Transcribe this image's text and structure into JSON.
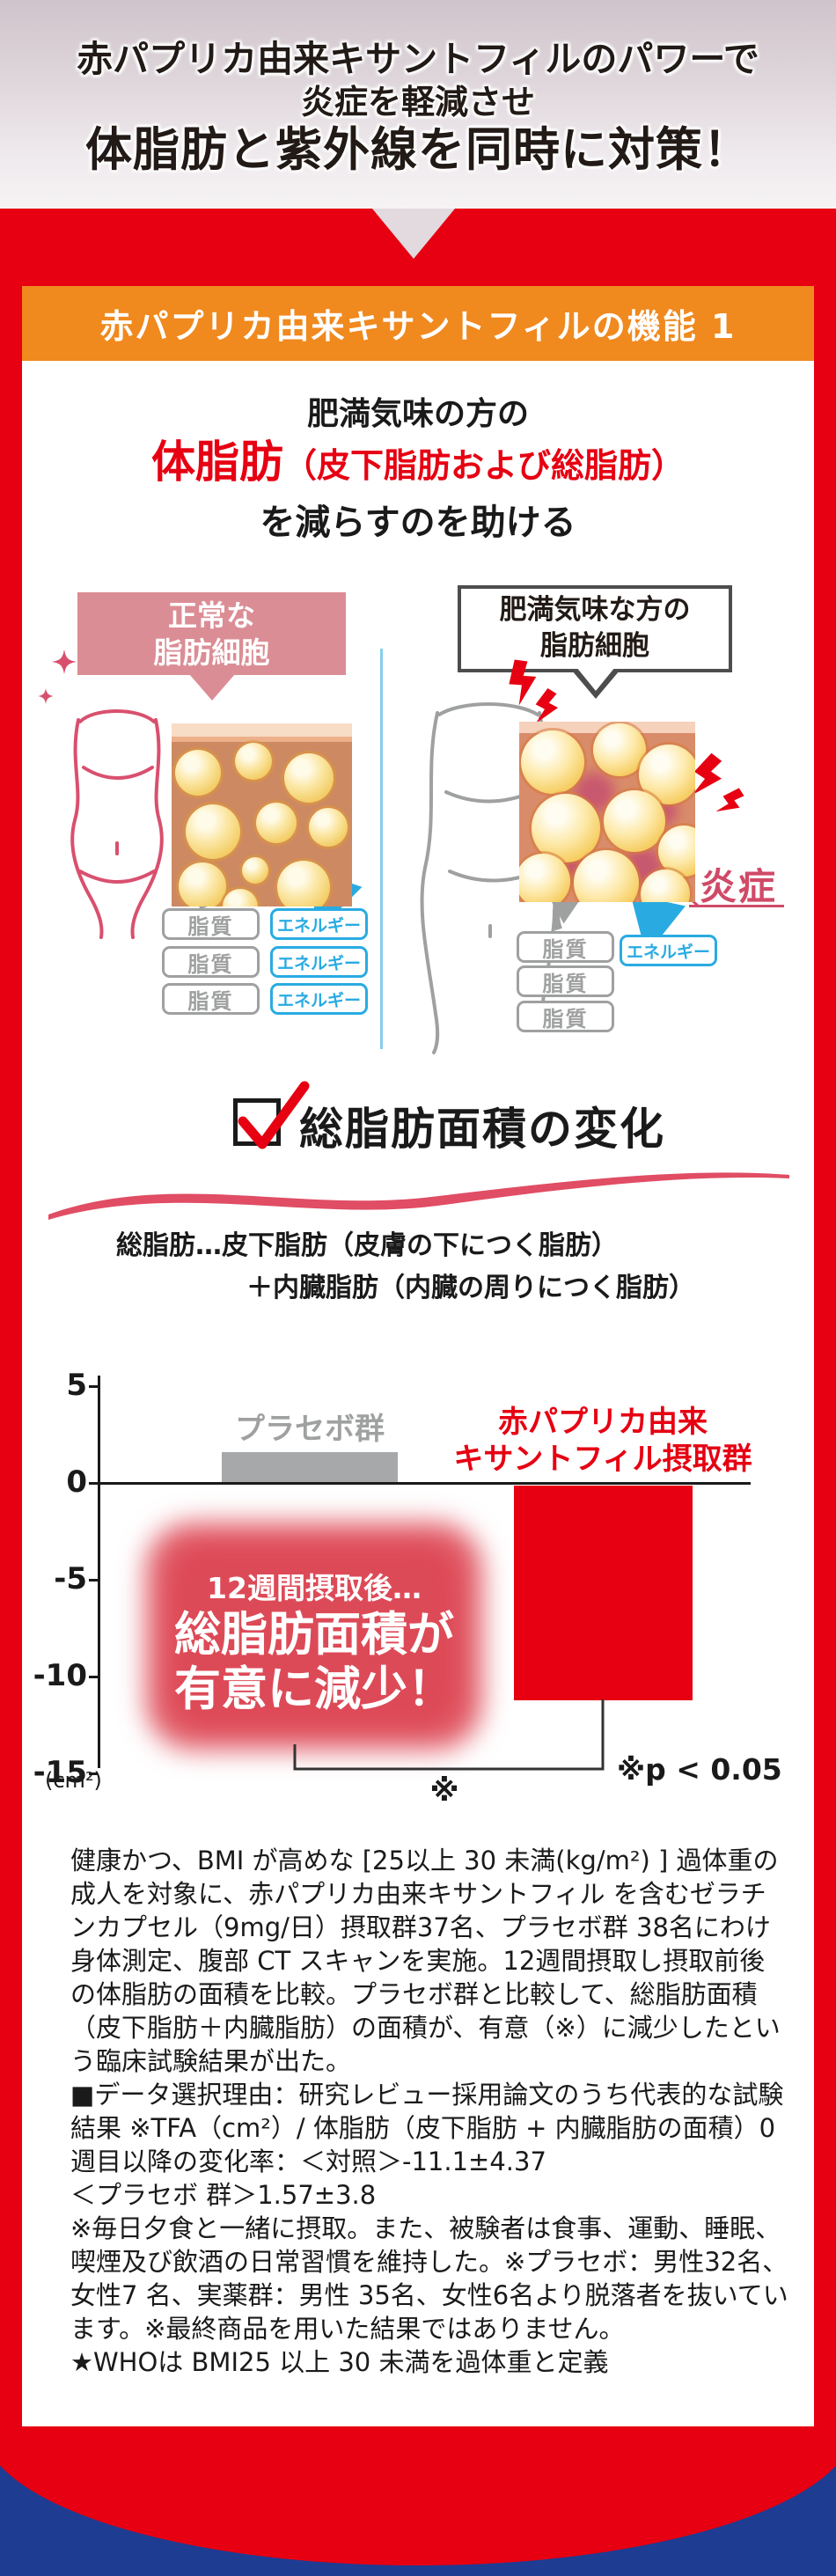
{
  "header": {
    "line1": "赤パプリカ由来キサントフィルのパワーで",
    "line2": "炎症を軽減させ",
    "line3": "体脂肪と紫外線を同時に対策！"
  },
  "banner": {
    "title": "赤パプリカ由来キサントフィルの機能 1"
  },
  "claim": {
    "line1": "肥満気味の方の",
    "em": "体脂肪",
    "em_note": "（皮下脂肪および総脂肪）",
    "line3": "を減らすのを助ける"
  },
  "comparison": {
    "normal": {
      "label_line1": "正常な",
      "label_line2": "脂肪細胞"
    },
    "obese": {
      "label_line1": "肥満気味な方の",
      "label_line2": "脂肪細胞",
      "inflammation_label": "炎症"
    },
    "lipid_label": "脂質",
    "energy_label": "エネルギー"
  },
  "section": {
    "heading": "総脂肪面積の変化",
    "definition_line1": "総脂肪…皮下脂肪（皮膚の下につく脂肪）",
    "definition_line2": "＋内臓脂肪（内臓の周りにつく脂肪）"
  },
  "chart_data": {
    "type": "bar",
    "title": "総脂肪面積の変化",
    "categories": [
      "プラセボ群",
      "赤パプリカ由来キサントフィル摂取群"
    ],
    "category_labels_lines": [
      [
        "プラセボ群"
      ],
      [
        "赤パプリカ由来",
        "キサントフィル摂取群"
      ]
    ],
    "values": [
      1.57,
      -11.1
    ],
    "unit": "(cm²)",
    "ylim": [
      -15,
      5
    ],
    "yticks": [
      5,
      0,
      -5,
      -10,
      -15
    ],
    "grid": false,
    "legend": "none",
    "bar_colors": [
      "#a7a8a9",
      "#e60012"
    ],
    "category_colors": [
      "#9fa0a0",
      "#e60012"
    ],
    "annotation": {
      "line1": "12週間摂取後…",
      "line2": "総脂肪面積が",
      "line3": "有意に減少！"
    },
    "significance_marker": "※",
    "significance_note": "※p < 0.05"
  },
  "footnotes": {
    "p1": "健康かつ、BMI が高めな [25以上 30 未満(kg/m²) ] 過体重の成人を対象に、赤パプリカ由来キサントフィル を含むゼラチンカプセル（9mg/日）摂取群37名、プラセボ群 38名にわけ身体測定、腹部 CT スキャンを実施。12週間摂取し摂取前後の体脂肪の面積を比較。プラセボ群と比較して、総脂肪面積（皮下脂肪＋内臓脂肪）の面積が、有意（※）に減少したという臨床試験結果が出た。",
    "p2": "■データ選択理由：研究レビュー採用論文のうち代表的な試験結果 ※TFA（cm²）/ 体脂肪（皮下脂肪 + 内臓脂肪の面積）0 週目以降の変化率：＜対照＞-11.1±4.37",
    "p3": "＜プラセボ 群＞1.57±3.8",
    "p4": "※毎日夕食と一緒に摂取。また、被験者は食事、運動、睡眠、喫煙及び飲酒の日常習慣を維持した。※プラセボ：男性32名、女性7 名、実薬群：男性 35名、女性6名より脱落者を抜いています。※最終商品を用いた結果ではありません。",
    "p5": "★WHOは BMI25 以上 30 未満を過体重と定義"
  },
  "colors": {
    "accent_red": "#e60012",
    "banner_orange": "#f0891e",
    "energy_blue": "#29abe2",
    "placebo_gray": "#a7a8a9",
    "inflammation_rose": "#d04a68",
    "bottom_blue": "#1e3c92"
  }
}
